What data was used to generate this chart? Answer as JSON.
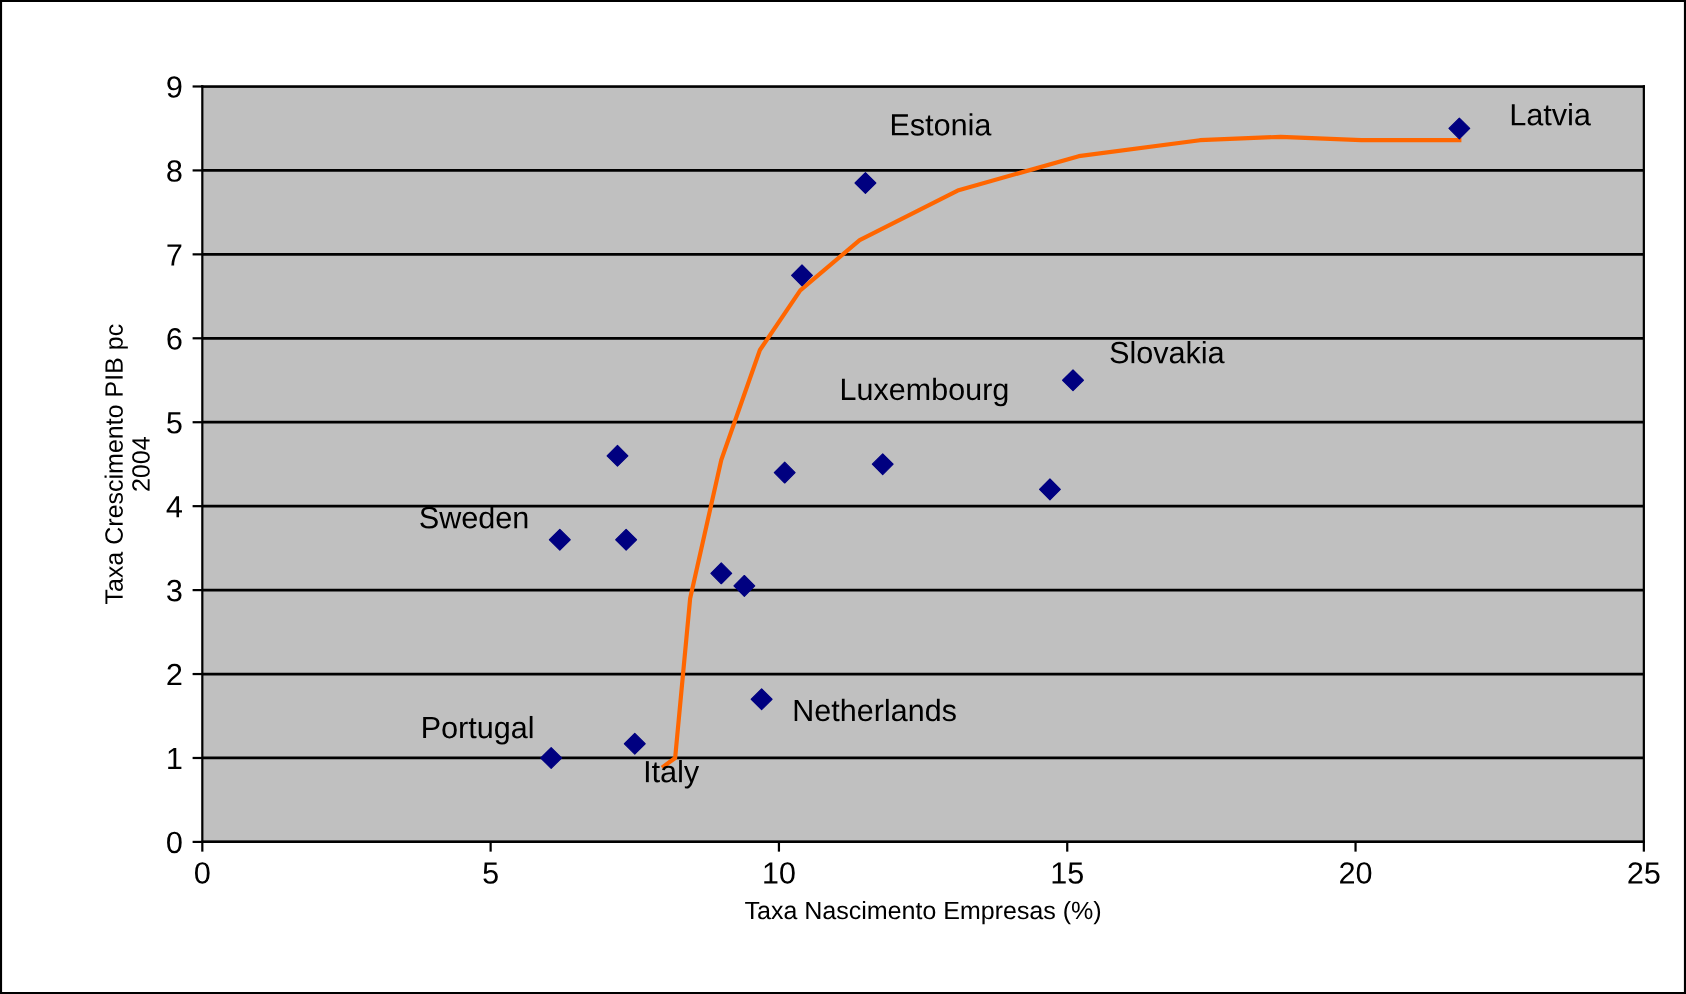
{
  "chart_data": {
    "type": "scatter",
    "xlabel": "Taxa Nascimento Empresas (%)",
    "ylabel": "Taxa Crescimento PIB pc\n2004",
    "xlim": [
      0,
      25
    ],
    "xticks": [
      0,
      5,
      10,
      15,
      20,
      25
    ],
    "ylim": [
      0,
      9
    ],
    "yticks": [
      0,
      1,
      2,
      3,
      4,
      5,
      6,
      7,
      8,
      9
    ],
    "grid": "y",
    "marker": "diamond",
    "series": [
      {
        "color": "#000080",
        "x": [
          21.8,
          11.5,
          10.4,
          15.1,
          7.2,
          10.1,
          11.8,
          14.7,
          6.2,
          7.35,
          9.0,
          9.4,
          9.7,
          6.05,
          7.5
        ],
        "values": [
          8.5,
          7.85,
          6.75,
          5.5,
          4.6,
          4.4,
          4.5,
          4.2,
          3.6,
          3.6,
          3.2,
          3.05,
          1.7,
          1.0,
          1.17
        ]
      },
      {
        "type": "line",
        "marker": "none",
        "color": "#ff6600",
        "x": [
          8.0,
          8.2,
          8.46,
          9.0,
          9.67,
          10.37,
          11.4,
          13.1,
          15.2,
          17.3,
          18.7,
          20.1,
          21.8
        ],
        "values": [
          0.9,
          1.0,
          2.9,
          4.55,
          5.86,
          6.57,
          7.17,
          7.76,
          8.17,
          8.36,
          8.4,
          8.36,
          8.36
        ]
      }
    ],
    "annotations": [
      {
        "text": "Latvia",
        "x": 21.8,
        "y": 8.5
      },
      {
        "text": "Estonia",
        "x": 11.5,
        "y": 7.85
      },
      {
        "text": "Slovakia",
        "x": 15.1,
        "y": 5.5
      },
      {
        "text": "Luxembourg",
        "x": 11.8,
        "y": 4.5
      },
      {
        "text": "Sweden",
        "x": 6.2,
        "y": 3.6
      },
      {
        "text": "Portugal",
        "x": 6.05,
        "y": 1.0
      },
      {
        "text": "Italy",
        "x": 7.5,
        "y": 1.17
      },
      {
        "text": "Netherlands",
        "x": 9.7,
        "y": 1.7
      }
    ]
  }
}
